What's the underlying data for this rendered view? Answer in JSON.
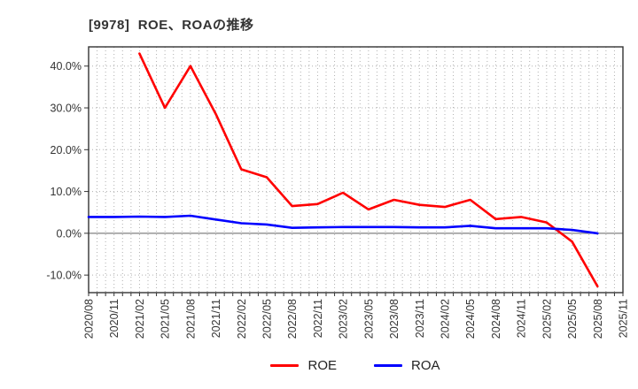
{
  "title": "[9978]  ROE、ROAの推移",
  "chart_data": {
    "type": "line",
    "title": "[9978]  ROE、ROAの推移",
    "categories": [
      "2020/08",
      "2020/11",
      "2021/02",
      "2021/05",
      "2021/08",
      "2021/11",
      "2022/02",
      "2022/05",
      "2022/08",
      "2022/11",
      "2023/02",
      "2023/05",
      "2023/08",
      "2023/11",
      "2024/02",
      "2024/05",
      "2024/08",
      "2024/11",
      "2025/02",
      "2025/05",
      "2025/08",
      "2025/11"
    ],
    "series": [
      {
        "name": "ROE",
        "color": "#ff0000",
        "values": [
          null,
          null,
          43.0,
          30.0,
          40.0,
          28.5,
          15.3,
          13.4,
          6.5,
          7.0,
          9.7,
          5.7,
          8.0,
          6.8,
          6.3,
          8.0,
          3.4,
          3.9,
          2.6,
          -2.0,
          -12.7,
          null
        ]
      },
      {
        "name": "ROA",
        "color": "#0000ff",
        "values": [
          3.9,
          3.9,
          4.0,
          3.9,
          4.2,
          3.3,
          2.4,
          2.1,
          1.3,
          1.4,
          1.5,
          1.5,
          1.5,
          1.4,
          1.4,
          1.8,
          1.2,
          1.2,
          1.2,
          0.8,
          0.0,
          null
        ]
      }
    ],
    "y_ticks": [
      {
        "value": 40,
        "label": "40.0%"
      },
      {
        "value": 30,
        "label": "30.0%"
      },
      {
        "value": 20,
        "label": "20.0%"
      },
      {
        "value": 10,
        "label": "10.0%"
      },
      {
        "value": 0,
        "label": "0.0%"
      },
      {
        "value": -10,
        "label": "-10.0%"
      }
    ],
    "ylim": [
      -14.2,
      44.6
    ],
    "xlabel": "",
    "ylabel": "",
    "grid": true,
    "minor_x_divisions": 3,
    "legend_position": "bottom-center",
    "colors": {
      "grid": "#b0b0b0",
      "zero_line": "#808080",
      "border": "#333333",
      "tick_text": "#333333"
    }
  }
}
